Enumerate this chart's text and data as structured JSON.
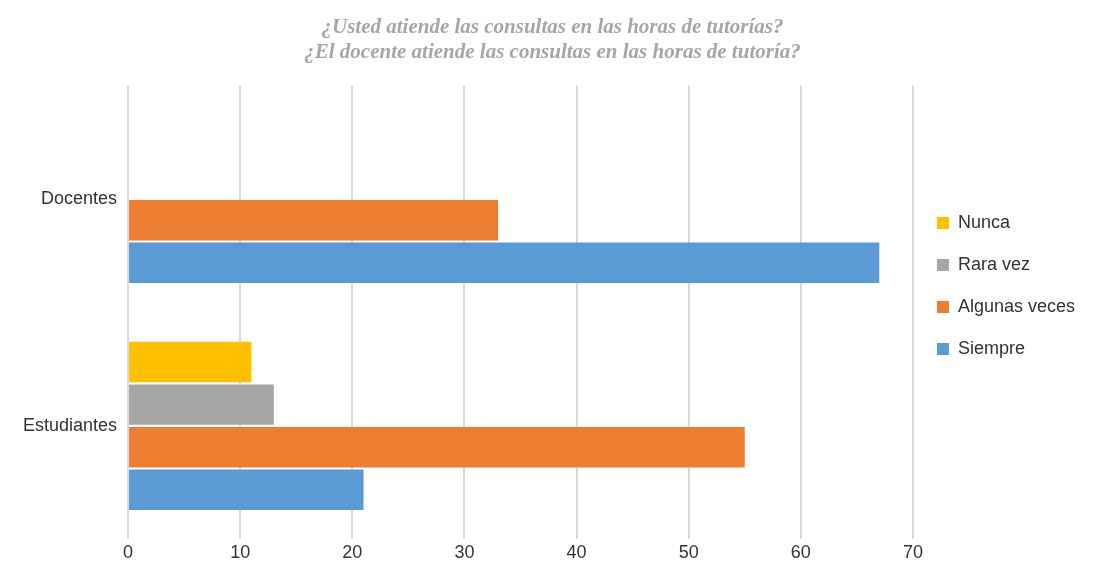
{
  "chart_data": {
    "type": "bar",
    "orientation": "horizontal",
    "title": "¿Usted atiende las consultas en las horas de tutorías?\n¿El docente atiende las consultas en las horas de tutoría?",
    "categories": [
      "Docentes",
      "Estudiantes"
    ],
    "series": [
      {
        "name": "Siempre",
        "color": "#5b9bd5",
        "values": [
          67,
          21
        ]
      },
      {
        "name": "Algunas veces",
        "color": "#ed7d31",
        "values": [
          33,
          55
        ]
      },
      {
        "name": "Rara vez",
        "color": "#a5a5a5",
        "values": [
          0,
          13
        ]
      },
      {
        "name": "Nunca",
        "color": "#ffc000",
        "values": [
          0,
          11
        ]
      }
    ],
    "xlim": [
      0,
      70
    ],
    "xticks": [
      0,
      10,
      20,
      30,
      40,
      50,
      60,
      70
    ],
    "grid": "x",
    "legend": "right"
  }
}
